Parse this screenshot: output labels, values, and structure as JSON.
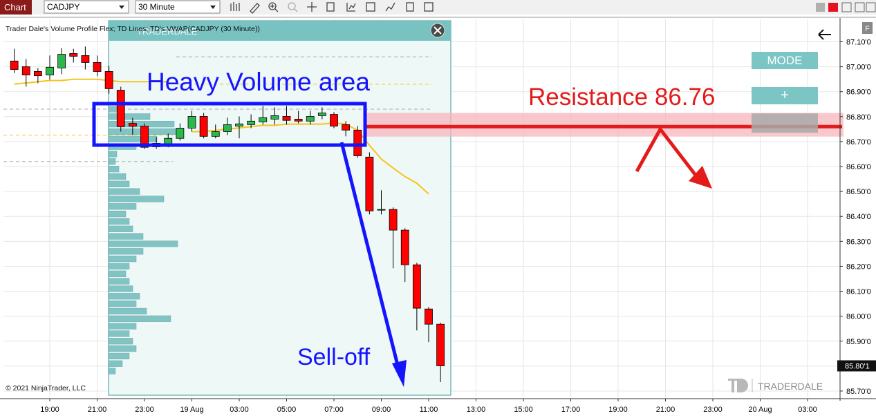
{
  "toolbar": {
    "title": "Chart",
    "instrument": "CADJPY",
    "period": "30 Minute"
  },
  "chart_data": {
    "type": "candlestick",
    "indicator_label": "Trader Dale's Volume Profile Flex; TD Lines; TD's VWAP(CADJPY (30 Minute))",
    "copyright": "© 2021 NinjaTrader, LLC",
    "brand": "TRADERDALE",
    "buttons": [
      "MODE",
      "+"
    ],
    "panel_button": "F",
    "categories": [
      null,
      null,
      null,
      "19:00",
      null,
      null,
      null,
      "21:00",
      null,
      null,
      null,
      "23:00",
      null,
      null,
      null,
      "19 Aug",
      null,
      null,
      null,
      "03:00",
      null,
      null,
      null,
      "05:00",
      null,
      null,
      null,
      "07:00",
      null,
      null,
      null,
      "09:00",
      null,
      null,
      null,
      "11:00",
      null,
      null,
      null,
      "13:00",
      null,
      null,
      null,
      "15:00",
      null,
      null,
      null,
      "17:00",
      null,
      null,
      null,
      "19:00",
      null,
      null,
      null,
      "21:00",
      null,
      null,
      null,
      "23:00",
      null,
      null,
      null,
      "20 Aug",
      null,
      null,
      null,
      "03:00",
      null,
      null
    ],
    "open": [
      87.023,
      87.0,
      86.981,
      86.967,
      86.995,
      87.053,
      87.045,
      87.017,
      86.981,
      86.906,
      86.773,
      86.762,
      86.693,
      86.685,
      86.713,
      86.754,
      86.801,
      86.721,
      86.74,
      86.762,
      86.768,
      86.779,
      86.79,
      86.801,
      86.79,
      86.782,
      86.804,
      86.809,
      86.768,
      86.746,
      86.638,
      86.425,
      86.428,
      86.345,
      86.206,
      86.029,
      85.968,
      null,
      null,
      null,
      null,
      null,
      null,
      null,
      null,
      null,
      null,
      null,
      null,
      null,
      null,
      null,
      null,
      null,
      null,
      null,
      null,
      null,
      null,
      null,
      null,
      null,
      null,
      null,
      null,
      null,
      null,
      null,
      null,
      null
    ],
    "high": [
      87.072,
      87.031,
      86.995,
      87.045,
      87.075,
      87.072,
      87.081,
      87.045,
      87.003,
      86.92,
      86.795,
      86.773,
      86.718,
      86.732,
      86.773,
      86.823,
      86.815,
      86.768,
      86.796,
      86.801,
      86.809,
      86.843,
      86.837,
      86.843,
      86.823,
      86.823,
      86.837,
      86.818,
      86.782,
      86.762,
      86.657,
      86.505,
      86.436,
      86.353,
      86.214,
      86.037,
      85.974,
      null,
      null,
      null,
      null,
      null,
      null,
      null,
      null,
      null,
      null,
      null,
      null,
      null,
      null,
      null,
      null,
      null,
      null,
      null,
      null,
      null,
      null,
      null,
      null,
      null,
      null,
      null,
      null,
      null,
      null,
      null,
      null,
      null
    ],
    "low": [
      86.975,
      86.92,
      86.934,
      86.948,
      86.97,
      87.017,
      86.989,
      86.962,
      86.892,
      86.74,
      86.726,
      86.671,
      86.671,
      86.677,
      86.704,
      86.74,
      86.713,
      86.713,
      86.726,
      86.713,
      86.754,
      86.768,
      86.768,
      86.768,
      86.773,
      86.768,
      86.79,
      86.754,
      86.721,
      86.635,
      86.408,
      86.408,
      86.192,
      86.137,
      85.943,
      85.896,
      85.736,
      null,
      null,
      null,
      null,
      null,
      null,
      null,
      null,
      null,
      null,
      null,
      null,
      null,
      null,
      null,
      null,
      null,
      null,
      null,
      null,
      null,
      null,
      null,
      null,
      null,
      null,
      null,
      null,
      null,
      null,
      null,
      null,
      null
    ],
    "close": [
      86.989,
      86.967,
      86.964,
      86.998,
      87.05,
      87.042,
      87.017,
      86.981,
      86.912,
      86.76,
      86.762,
      86.677,
      86.679,
      86.713,
      86.754,
      86.801,
      86.721,
      86.74,
      86.768,
      86.771,
      86.782,
      86.796,
      86.804,
      86.785,
      86.782,
      86.801,
      86.815,
      86.762,
      86.746,
      86.643,
      86.422,
      86.428,
      86.345,
      86.206,
      86.032,
      85.968,
      85.801,
      null,
      null,
      null,
      null,
      null,
      null,
      null,
      null,
      null,
      null,
      null,
      null,
      null,
      null,
      null,
      null,
      null,
      null,
      null,
      null,
      null,
      null,
      null,
      null,
      null,
      null,
      null,
      null,
      null,
      null,
      null,
      null,
      null
    ],
    "up_color": "#2db84d",
    "down_color": "#ff0000",
    "vwap": {
      "color": "#f5c518",
      "values": [
        86.93,
        86.935,
        86.94,
        86.945,
        86.945,
        86.95,
        86.95,
        86.95,
        86.945,
        86.94,
        86.94,
        86.94,
        86.94,
        86.94,
        null,
        86.74,
        86.74,
        86.745,
        86.75,
        86.755,
        86.76,
        86.765,
        86.765,
        86.77,
        86.77,
        86.77,
        86.77,
        86.775,
        86.77,
        86.745,
        86.685,
        86.63,
        86.594,
        86.56,
        86.533,
        86.49,
        null,
        null,
        null,
        null,
        null,
        null,
        null,
        null,
        null,
        null,
        null,
        null,
        null,
        null,
        null,
        null,
        null,
        null,
        null,
        null,
        null,
        null,
        null,
        null,
        null,
        null,
        null,
        null,
        null,
        null,
        null,
        null,
        null,
        null
      ]
    },
    "volume_profile": {
      "color": "#5fb3b3",
      "prices": [
        86.83,
        86.8,
        86.77,
        86.74,
        86.71,
        86.68,
        86.65,
        86.62,
        86.59,
        86.56,
        86.53,
        86.5,
        86.47,
        86.44,
        86.41,
        86.38,
        86.35,
        86.32,
        86.29,
        86.26,
        86.23,
        86.2,
        86.17,
        86.14,
        86.11,
        86.08,
        86.05,
        86.02,
        85.99,
        85.96,
        85.93,
        85.9,
        85.87,
        85.84,
        85.81,
        85.78
      ],
      "volumes": [
        20,
        60,
        95,
        100,
        70,
        40,
        12,
        10,
        15,
        25,
        30,
        45,
        80,
        40,
        25,
        30,
        35,
        50,
        100,
        50,
        40,
        30,
        25,
        30,
        35,
        45,
        40,
        55,
        90,
        40,
        30,
        35,
        40,
        30,
        20,
        10
      ]
    },
    "dashed_levels": [
      {
        "value": 87.04,
        "color": "#aaaaaa"
      },
      {
        "value": 86.93,
        "color": "#f5c518"
      },
      {
        "value": 86.83,
        "color": "#aaaaaa"
      },
      {
        "value": 86.726,
        "color": "#f5c518"
      },
      {
        "value": 86.62,
        "color": "#aaaaaa"
      }
    ],
    "resistance": {
      "label": "Resistance 86.76",
      "value": 86.76,
      "color": "#e31b1b",
      "zone": [
        86.72,
        86.815
      ]
    },
    "annotations": [
      {
        "text": "Heavy Volume area",
        "color": "#1414ff"
      },
      {
        "text": "Sell-off",
        "color": "#1414ff"
      }
    ],
    "last_price": {
      "value": 85.801,
      "label": "85.80'1"
    },
    "ylim": [
      85.675,
      87.19
    ],
    "yticks": [
      {
        "value": 87.1,
        "label": "87.10'0"
      },
      {
        "value": 87.0,
        "label": "87.00'0"
      },
      {
        "value": 86.9,
        "label": "86.90'0"
      },
      {
        "value": 86.8,
        "label": "86.80'0"
      },
      {
        "value": 86.7,
        "label": "86.70'0"
      },
      {
        "value": 86.6,
        "label": "86.60'0"
      },
      {
        "value": 86.5,
        "label": "86.50'0"
      },
      {
        "value": 86.4,
        "label": "86.40'0"
      },
      {
        "value": 86.3,
        "label": "86.30'0"
      },
      {
        "value": 86.2,
        "label": "86.20'0"
      },
      {
        "value": 86.1,
        "label": "86.10'0"
      },
      {
        "value": 86.0,
        "label": "86.00'0"
      },
      {
        "value": 85.9,
        "label": "85.90'0"
      },
      {
        "value": 85.8,
        "label": "85.80'0"
      },
      {
        "value": 85.7,
        "label": "85.70'0"
      }
    ],
    "grid": true
  }
}
